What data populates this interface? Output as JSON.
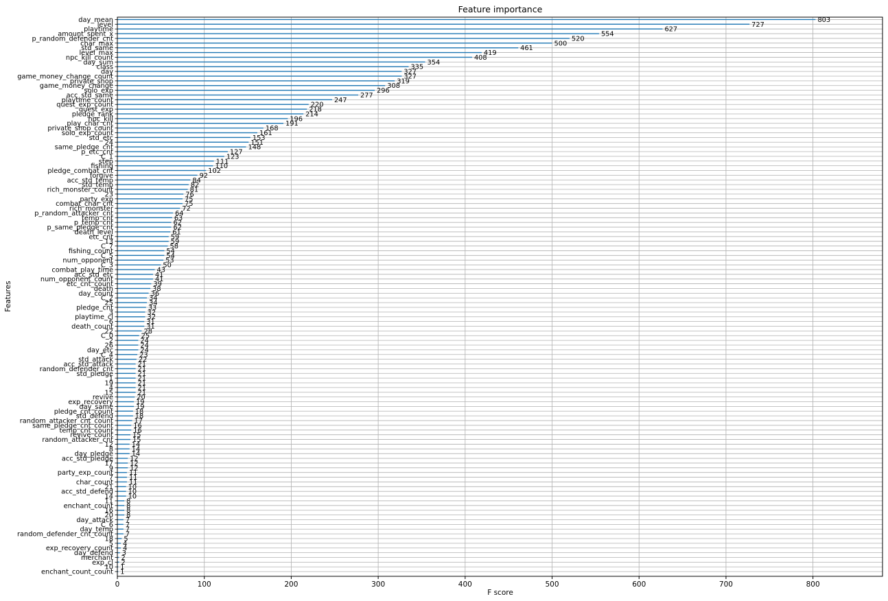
{
  "chart_data": {
    "type": "bar",
    "orientation": "horizontal",
    "title": "Feature importance",
    "xlabel": "F score",
    "ylabel": "Features",
    "xlim": [
      0,
      880
    ],
    "x_ticks": [
      0,
      100,
      200,
      300,
      400,
      500,
      600,
      700,
      800
    ],
    "x_tick_labels": [
      "0",
      "100",
      "200",
      "300",
      "400",
      "500",
      "600",
      "700",
      "800"
    ],
    "grid": true,
    "bar_color": "#1f77b4",
    "categories": [
      "day_mean",
      "level",
      "playtime",
      "amount_spent_x",
      "p_random_defender_cnt",
      "char_max",
      "std_same",
      "level_max",
      "npc_kill_count",
      "day_sum",
      "class",
      "day",
      "game_money_change_count",
      "private_shop",
      "game_money_change",
      "solo_exp",
      "acc_std_same",
      "playtime_count",
      "quest_exp_count",
      "quest_exp",
      "pledge_rank",
      "npc_kill",
      "play_char_cnt",
      "private_shop_count",
      "solo_exp_count",
      "std_etc",
      "24",
      "same_pledge_cnt",
      "p_etc_cnt",
      "C_1",
      "step",
      "fishing",
      "pledge_combat_cnt",
      "forgive",
      "acc_std_temp",
      "std_temp",
      "rich_monster_count",
      "23",
      "party_exp",
      "combat_char_cnt",
      "rich_monster",
      "p_random_attacker_cnt",
      "temp_cnt",
      "p_temp_cnt",
      "p_same_pledge_cnt",
      "death_level",
      "etc_cnt",
      "13",
      "C_7",
      "fishing_count",
      "C_5",
      "num_opponent",
      "C_3",
      "combat_play_time",
      "acc_std_etc",
      "num_opponent_count",
      "etc_cnt_count",
      "death",
      "day_count",
      "C_2",
      "25",
      "pledge_cnt",
      "3",
      "playtime_cl",
      "6",
      "death_count",
      "22",
      "C_0",
      "2",
      "26",
      "day_etc",
      "C_4",
      "std_attack",
      "acc_std_attack",
      "random_defender_cnt",
      "std_pledge",
      "1",
      "19",
      "4",
      "15",
      "revive",
      "exp_recovery",
      "day_same",
      "pledge_cnt_count",
      "std_defend",
      "random_attacker_cnt_count",
      "same_pledge_cnt_count",
      "temp_cnt_count",
      "revive_count",
      "random_attacker_cnt",
      "12",
      "8",
      "day_pledge",
      "acc_std_pledge",
      "17",
      "9",
      "party_exp_count",
      "7",
      "char_count",
      "21",
      "acc_std_defend",
      "14",
      "11",
      "enchant_count",
      "16",
      "20",
      "day_attack",
      "C_6",
      "day_temp",
      "random_defender_cnt_count",
      "18",
      "5",
      "exp_recovery_count",
      "day_defend",
      "merchant",
      "exp_cl",
      "10",
      "enchant_count_count"
    ],
    "values": [
      803,
      727,
      627,
      554,
      520,
      500,
      461,
      419,
      408,
      354,
      335,
      327,
      327,
      319,
      308,
      296,
      277,
      247,
      220,
      218,
      214,
      196,
      191,
      168,
      161,
      153,
      151,
      148,
      127,
      123,
      111,
      110,
      102,
      92,
      84,
      82,
      81,
      76,
      75,
      75,
      72,
      64,
      63,
      62,
      62,
      61,
      59,
      59,
      58,
      54,
      54,
      53,
      50,
      43,
      41,
      41,
      39,
      38,
      36,
      34,
      34,
      33,
      32,
      32,
      31,
      31,
      28,
      25,
      24,
      24,
      24,
      23,
      22,
      21,
      21,
      21,
      21,
      21,
      21,
      21,
      20,
      19,
      19,
      18,
      18,
      17,
      16,
      16,
      15,
      15,
      14,
      14,
      14,
      12,
      12,
      12,
      11,
      11,
      11,
      10,
      10,
      10,
      8,
      8,
      8,
      8,
      7,
      7,
      7,
      7,
      5,
      4,
      4,
      3,
      2,
      2,
      1,
      1
    ]
  }
}
